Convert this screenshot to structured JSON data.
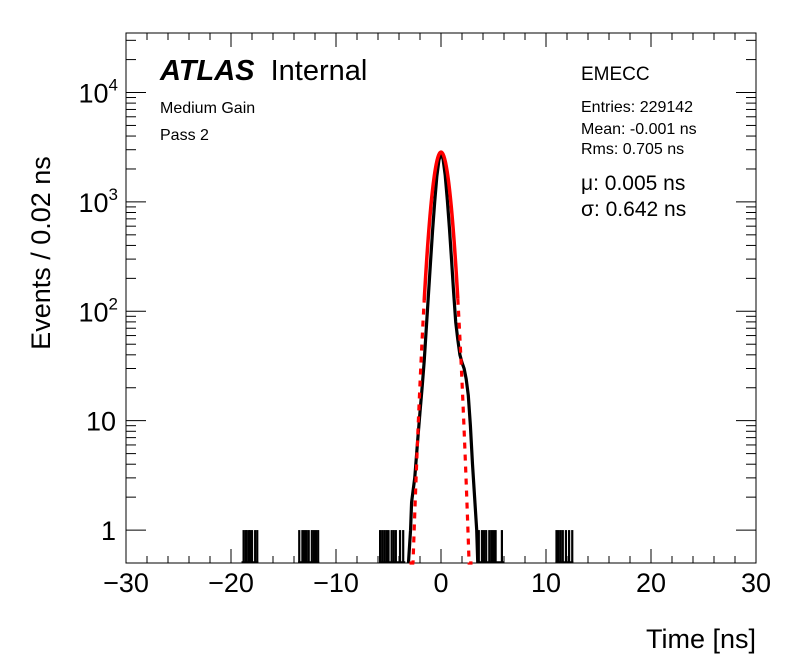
{
  "chart_data": {
    "type": "histogram",
    "y_scale": "log",
    "xlim": [
      -30,
      30
    ],
    "ylim": [
      0.5,
      35000
    ],
    "bin_width_ns": 0.02,
    "xlabel": "Time [ns]",
    "ylabel": "Events / 0.02 ns",
    "x_ticks": [
      {
        "value": -30,
        "label": "−30"
      },
      {
        "value": -20,
        "label": "−20"
      },
      {
        "value": -10,
        "label": "−10"
      },
      {
        "value": 0,
        "label": "0"
      },
      {
        "value": 10,
        "label": "10"
      },
      {
        "value": 20,
        "label": "20"
      },
      {
        "value": 30,
        "label": "30"
      }
    ],
    "y_ticks": [
      {
        "value": 1,
        "label": "1"
      },
      {
        "value": 10,
        "label": "10"
      },
      {
        "value": 100,
        "label": "10",
        "exp": "2"
      },
      {
        "value": 1000,
        "label": "10",
        "exp": "3"
      },
      {
        "value": 10000,
        "label": "10",
        "exp": "4"
      }
    ],
    "labels": {
      "atlas": "ATLAS",
      "internal": "Internal",
      "gain": "Medium Gain",
      "pass": "Pass 2",
      "region": "EMECC"
    },
    "stats": {
      "entries": "Entries: 229142",
      "mean": "Mean: -0.001 ns",
      "rms": "Rms: 0.705 ns"
    },
    "fit": {
      "mu_text": "μ: 0.005 ns",
      "sigma_text": "σ: 0.642 ns",
      "mu": 0.005,
      "sigma": 0.642,
      "amplitude": 2850,
      "color": "#ff0000"
    },
    "histogram_color": "#000000",
    "core_profile": [
      [
        -3.1,
        0.5
      ],
      [
        -2.9,
        1.0
      ],
      [
        -2.8,
        1.8
      ],
      [
        -2.5,
        3
      ],
      [
        -2.2,
        7
      ],
      [
        -2.0,
        12
      ],
      [
        -1.8,
        20
      ],
      [
        -1.6,
        35
      ],
      [
        -1.4,
        70
      ],
      [
        -1.2,
        140
      ],
      [
        -1.0,
        280
      ],
      [
        -0.8,
        550
      ],
      [
        -0.6,
        1000
      ],
      [
        -0.4,
        1700
      ],
      [
        -0.2,
        2400
      ],
      [
        0.0,
        2850
      ],
      [
        0.2,
        2450
      ],
      [
        0.4,
        1750
      ],
      [
        0.6,
        1050
      ],
      [
        0.8,
        580
      ],
      [
        1.0,
        300
      ],
      [
        1.2,
        150
      ],
      [
        1.4,
        80
      ],
      [
        1.6,
        55
      ],
      [
        1.8,
        40
      ],
      [
        2.0,
        34
      ],
      [
        2.2,
        30
      ],
      [
        2.4,
        24
      ],
      [
        2.6,
        17
      ],
      [
        2.8,
        9
      ],
      [
        3.0,
        4
      ],
      [
        3.2,
        2
      ],
      [
        3.4,
        1.0
      ],
      [
        3.5,
        0.5
      ]
    ],
    "sparse_bins": [
      -18.8,
      -18.6,
      -18.5,
      -18.3,
      -18.2,
      -18.0,
      -17.7,
      -17.5,
      -13.5,
      -13.2,
      -13.0,
      -12.8,
      -12.6,
      -12.3,
      -12.1,
      -11.9,
      -11.7,
      -5.8,
      -5.6,
      -5.4,
      -5.2,
      -5.0,
      -4.7,
      -4.5,
      -4.3,
      -3.9,
      -3.6,
      3.6,
      3.9,
      4.1,
      4.3,
      4.6,
      4.8,
      5.0,
      5.2,
      5.8,
      11.0,
      11.2,
      11.4,
      11.6,
      11.9,
      12.2,
      12.5
    ],
    "sparse_bins_value": 1
  }
}
